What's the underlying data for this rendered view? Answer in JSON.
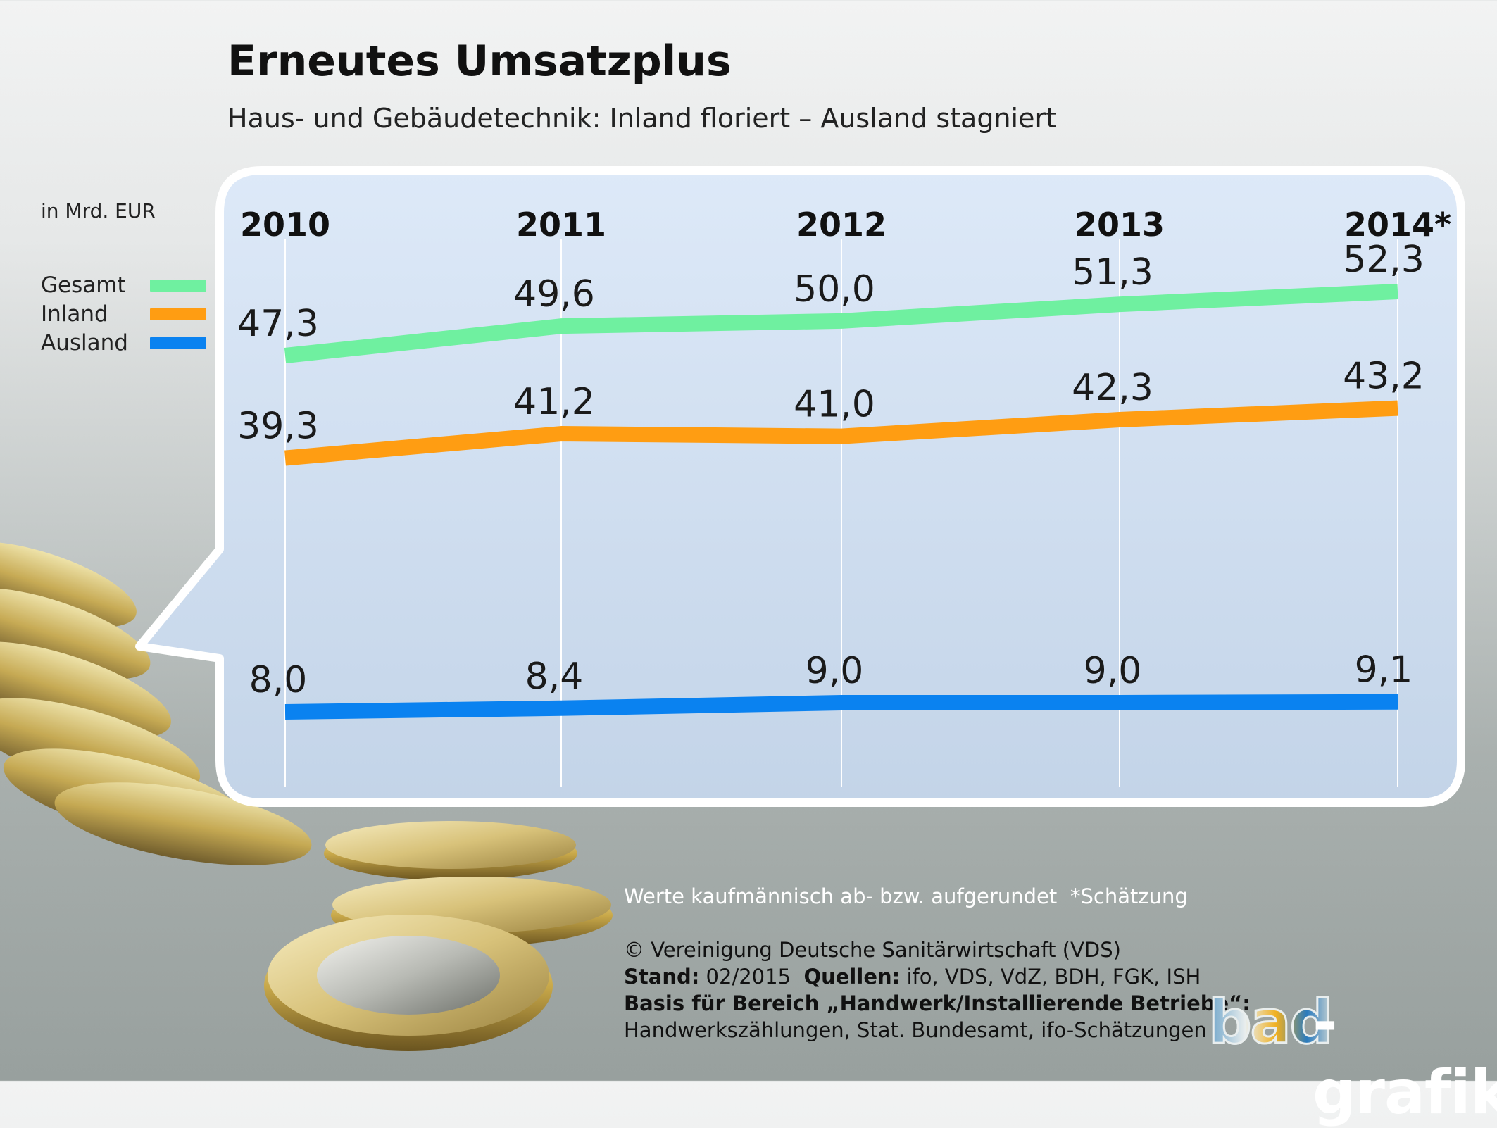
{
  "header": {
    "title": "Erneutes Umsatzplus",
    "subtitle": "Haus- und Gebäudetechnik: Inland floriert – Ausland stagniert"
  },
  "chart_data": {
    "type": "line",
    "title": "Erneutes Umsatzplus",
    "subtitle": "Haus- und Gebäudetechnik: Inland floriert – Ausland stagniert",
    "unit_label": "in Mrd. EUR",
    "categories": [
      "2010",
      "2011",
      "2012",
      "2013",
      "2014*"
    ],
    "series": [
      {
        "name": "Gesamt",
        "color": "#6ff0a0",
        "values": [
          47.3,
          49.6,
          50.0,
          51.3,
          52.3
        ],
        "labels": [
          "47,3",
          "49,6",
          "50,0",
          "51,3",
          "52,3"
        ]
      },
      {
        "name": "Inland",
        "color": "#ff9d12",
        "values": [
          39.3,
          41.2,
          41.0,
          42.3,
          43.2
        ],
        "labels": [
          "39,3",
          "41,2",
          "41,0",
          "42,3",
          "43,2"
        ]
      },
      {
        "name": "Ausland",
        "color": "#0a82f0",
        "values": [
          8.0,
          8.4,
          9.0,
          9.0,
          9.1
        ],
        "labels": [
          "8,0",
          "8,4",
          "9,0",
          "9,0",
          "9,1"
        ]
      }
    ],
    "grid": "vertical",
    "legend_position": "left"
  },
  "footer": {
    "note_rounding": "Werte kaufmännisch ab- bzw. aufgerundet",
    "note_estimate": "*Schätzung",
    "copyright": "© Vereinigung Deutsche Sanitärwirtschaft (VDS)",
    "stand_label": "Stand:",
    "stand_value": "02/2015",
    "sources_label": "Quellen:",
    "sources_value": "ifo, VDS, VdZ, BDH, FGK, ISH",
    "basis_label": "Basis für Bereich „Handwerk/Installierende Betriebe“:",
    "basis_sources": "Handwerkszählungen, Stat. Bundesamt, ifo-Schätzungen"
  },
  "logo": {
    "part1": "bad",
    "part2": "-grafik"
  }
}
